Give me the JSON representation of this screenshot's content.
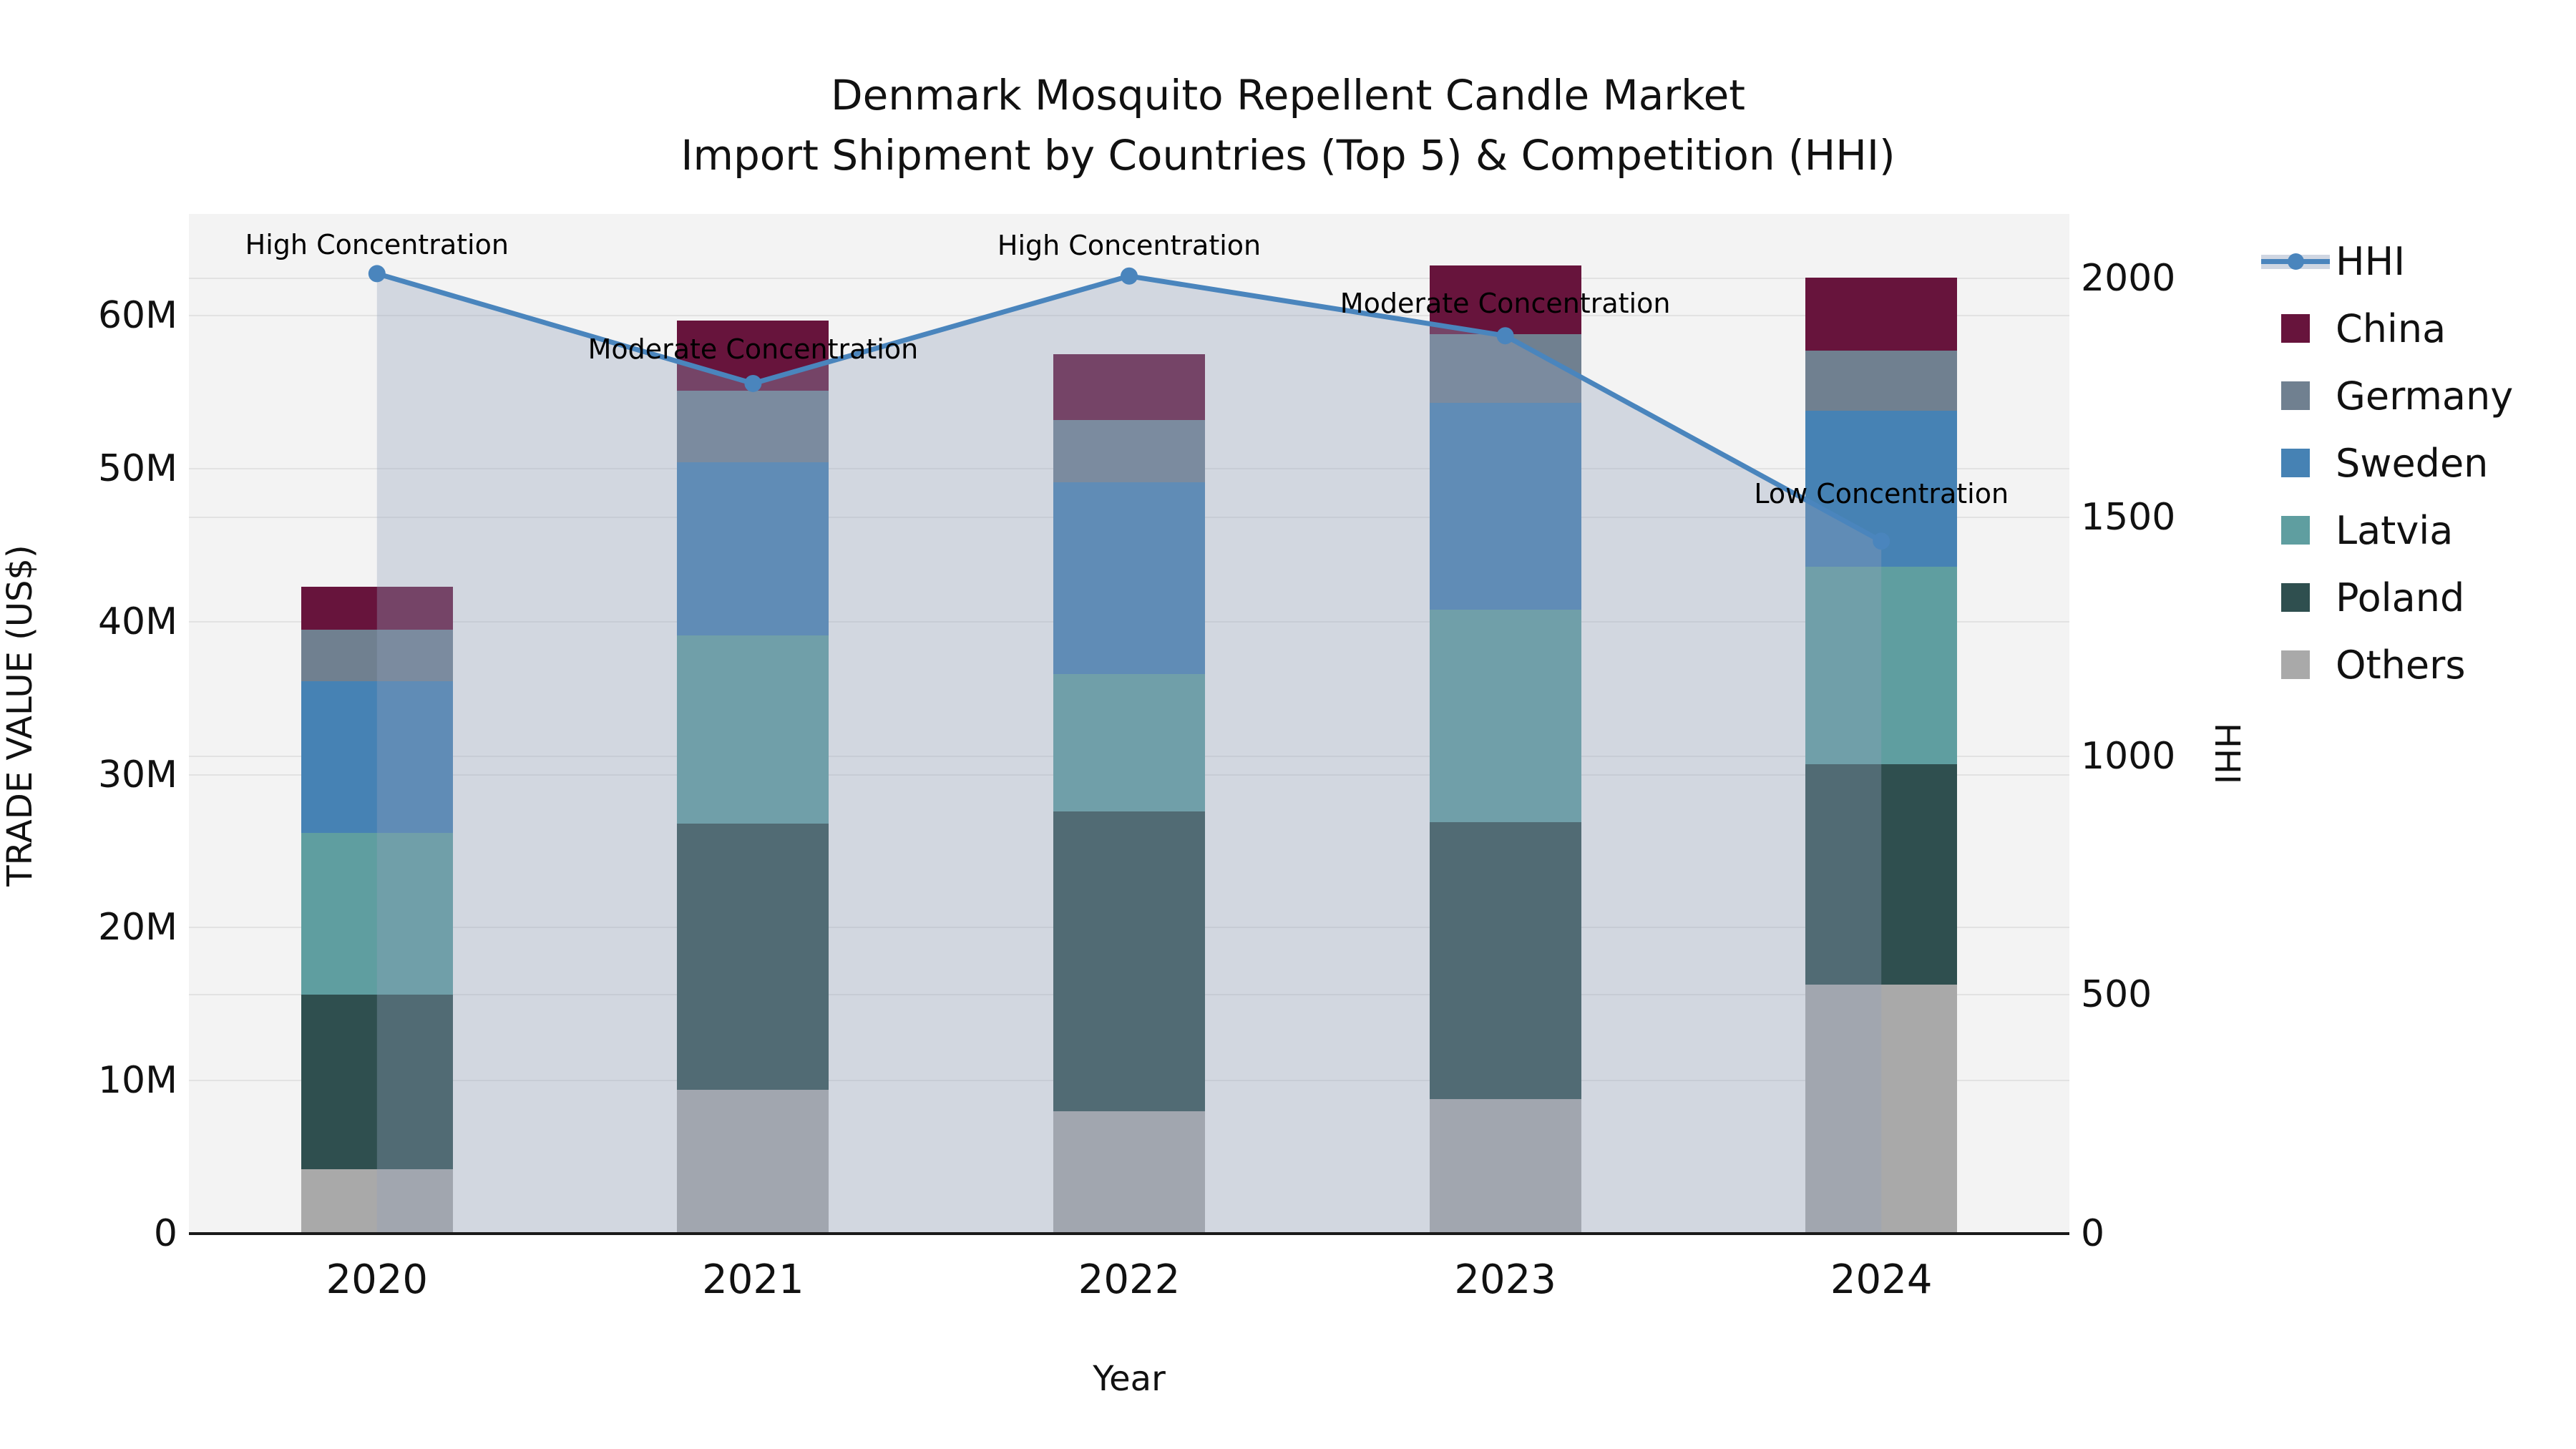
{
  "title": {
    "line1": "Denmark Mosquito Repellent Candle Market",
    "line2": "Import Shipment by Countries (Top 5) & Competition (HHI)"
  },
  "axes": {
    "y_left": {
      "label": "TRADE VALUE (US$)",
      "ticks": [
        "0",
        "10M",
        "20M",
        "30M",
        "40M",
        "50M",
        "60M"
      ],
      "tick_values": [
        0,
        10,
        20,
        30,
        40,
        50,
        60
      ],
      "max": 66.65
    },
    "y_right": {
      "label": "HHI",
      "ticks": [
        "0",
        "500",
        "1000",
        "1500",
        "2000"
      ],
      "tick_values": [
        0,
        500,
        1000,
        1500,
        2000
      ],
      "max": 2135
    },
    "x": {
      "label": "Year",
      "categories": [
        "2020",
        "2021",
        "2022",
        "2023",
        "2024"
      ]
    }
  },
  "legend": {
    "entries": [
      {
        "label": "HHI",
        "type": "line",
        "color": "#4a85bd"
      },
      {
        "label": "China",
        "type": "swatch",
        "color": "#67143C"
      },
      {
        "label": "Germany",
        "type": "swatch",
        "color": "#708090"
      },
      {
        "label": "Sweden",
        "type": "swatch",
        "color": "#4682B4"
      },
      {
        "label": "Latvia",
        "type": "swatch",
        "color": "#5F9EA0"
      },
      {
        "label": "Poland",
        "type": "swatch",
        "color": "#2F4F4F"
      },
      {
        "label": "Others",
        "type": "swatch",
        "color": "#A9A9A9"
      }
    ]
  },
  "annotations": [
    {
      "text": "High Concentration",
      "category": "2020"
    },
    {
      "text": "Moderate Concentration",
      "category": "2021"
    },
    {
      "text": "High Concentration",
      "category": "2022"
    },
    {
      "text": "Moderate Concentration",
      "category": "2023"
    },
    {
      "text": "Low Concentration",
      "category": "2024"
    }
  ],
  "chart_data": {
    "type": "bar+line",
    "categories": [
      "2020",
      "2021",
      "2022",
      "2023",
      "2024"
    ],
    "bar_unit": "million US$",
    "stack_order_bottom_to_top": [
      "Others",
      "Poland",
      "Latvia",
      "Sweden",
      "Germany",
      "China"
    ],
    "series": [
      {
        "name": "Others",
        "color": "#A9A9A9",
        "values": [
          4.2,
          9.4,
          8.0,
          8.8,
          16.3
        ]
      },
      {
        "name": "Poland",
        "color": "#2F4F4F",
        "values": [
          11.4,
          17.4,
          19.6,
          18.1,
          14.4
        ]
      },
      {
        "name": "Latvia",
        "color": "#5F9EA0",
        "values": [
          10.6,
          12.3,
          9.0,
          13.9,
          12.9
        ]
      },
      {
        "name": "Sweden",
        "color": "#4682B4",
        "values": [
          9.9,
          11.3,
          12.5,
          13.5,
          10.2
        ]
      },
      {
        "name": "Germany",
        "color": "#708090",
        "values": [
          3.4,
          4.7,
          4.1,
          4.5,
          3.9
        ]
      },
      {
        "name": "China",
        "color": "#67143C",
        "values": [
          2.8,
          4.6,
          4.3,
          4.5,
          4.8
        ]
      }
    ],
    "bar_totals": [
      42.3,
      59.7,
      57.5,
      63.3,
      62.5
    ],
    "line": {
      "name": "HHI",
      "color": "#4a85bd",
      "area_fill": "rgba(148,162,188,0.34)",
      "values": [
        2010,
        1780,
        2005,
        1880,
        1450
      ]
    },
    "title": "Denmark Mosquito Repellent Candle Market — Import Shipment by Countries (Top 5) & Competition (HHI)",
    "xlabel": "Year",
    "ylabel": "TRADE VALUE (US$)",
    "ylabel_right": "HHI",
    "ylim": [
      0,
      66.65
    ],
    "ylim_right": [
      0,
      2135
    ],
    "grid": true,
    "legend_position": "right"
  }
}
